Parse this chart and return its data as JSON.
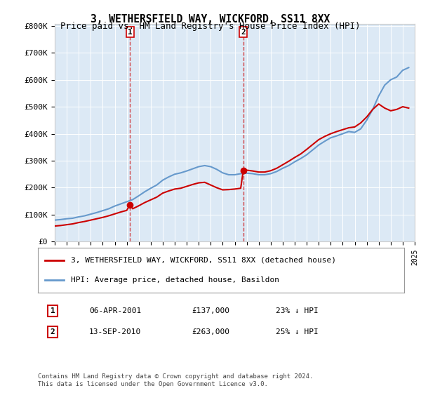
{
  "title": "3, WETHERSFIELD WAY, WICKFORD, SS11 8XX",
  "subtitle": "Price paid vs. HM Land Registry's House Price Index (HPI)",
  "bg_color": "#dce9f5",
  "plot_bg": "#dce9f5",
  "red_line_color": "#cc0000",
  "blue_line_color": "#6699cc",
  "sale1_year": 2001.27,
  "sale1_price": 137000,
  "sale1_label": "1",
  "sale2_year": 2010.71,
  "sale2_price": 263000,
  "sale2_label": "2",
  "xmin": 1995,
  "xmax": 2025,
  "ymin": 0,
  "ymax": 800000,
  "yticks": [
    0,
    100000,
    200000,
    300000,
    400000,
    500000,
    600000,
    700000,
    800000
  ],
  "xticks": [
    1995,
    1996,
    1997,
    1998,
    1999,
    2000,
    2001,
    2002,
    2003,
    2004,
    2005,
    2006,
    2007,
    2008,
    2009,
    2010,
    2011,
    2012,
    2013,
    2014,
    2015,
    2016,
    2017,
    2018,
    2019,
    2020,
    2021,
    2022,
    2023,
    2024,
    2025
  ],
  "legend_red_label": "3, WETHERSFIELD WAY, WICKFORD, SS11 8XX (detached house)",
  "legend_blue_label": "HPI: Average price, detached house, Basildon",
  "annotation1": [
    "1",
    "06-APR-2001",
    "£137,000",
    "23% ↓ HPI"
  ],
  "annotation2": [
    "2",
    "13-SEP-2010",
    "£263,000",
    "25% ↓ HPI"
  ],
  "footer": "Contains HM Land Registry data © Crown copyright and database right 2024.\nThis data is licensed under the Open Government Licence v3.0.",
  "hpi_years": [
    1995,
    1995.5,
    1996,
    1996.5,
    1997,
    1997.5,
    1998,
    1998.5,
    1999,
    1999.5,
    2000,
    2000.5,
    2001,
    2001.5,
    2002,
    2002.5,
    2003,
    2003.5,
    2004,
    2004.5,
    2005,
    2005.5,
    2006,
    2006.5,
    2007,
    2007.5,
    2008,
    2008.5,
    2009,
    2009.5,
    2010,
    2010.5,
    2011,
    2011.5,
    2012,
    2012.5,
    2013,
    2013.5,
    2014,
    2014.5,
    2015,
    2015.5,
    2016,
    2016.5,
    2017,
    2017.5,
    2018,
    2018.5,
    2019,
    2019.5,
    2020,
    2020.5,
    2021,
    2021.5,
    2022,
    2022.5,
    2023,
    2023.5,
    2024,
    2024.5
  ],
  "hpi_values": [
    80000,
    82000,
    85000,
    87000,
    92000,
    96000,
    102000,
    108000,
    115000,
    122000,
    132000,
    140000,
    148000,
    156000,
    170000,
    185000,
    198000,
    210000,
    228000,
    240000,
    250000,
    255000,
    262000,
    270000,
    278000,
    282000,
    278000,
    268000,
    255000,
    248000,
    248000,
    252000,
    254000,
    252000,
    248000,
    248000,
    252000,
    260000,
    272000,
    282000,
    296000,
    308000,
    322000,
    340000,
    358000,
    372000,
    385000,
    392000,
    400000,
    408000,
    405000,
    418000,
    450000,
    490000,
    540000,
    580000,
    600000,
    610000,
    635000,
    645000
  ],
  "red_years": [
    1995,
    1995.5,
    1996,
    1996.5,
    1997,
    1997.5,
    1998,
    1998.5,
    1999,
    1999.5,
    2000,
    2000.5,
    2001,
    2001.27,
    2001.5,
    2002,
    2002.5,
    2003,
    2003.5,
    2004,
    2004.5,
    2005,
    2005.5,
    2006,
    2006.5,
    2007,
    2007.5,
    2008,
    2008.5,
    2009,
    2009.5,
    2010,
    2010.5,
    2010.71,
    2011,
    2011.5,
    2012,
    2012.5,
    2013,
    2013.5,
    2014,
    2014.5,
    2015,
    2015.5,
    2016,
    2016.5,
    2017,
    2017.5,
    2018,
    2018.5,
    2019,
    2019.5,
    2020,
    2020.5,
    2021,
    2021.5,
    2022,
    2022.5,
    2023,
    2023.5,
    2024,
    2024.5
  ],
  "red_values": [
    58000,
    60000,
    63000,
    66000,
    71000,
    75000,
    80000,
    85000,
    90000,
    96000,
    103000,
    110000,
    116000,
    137000,
    122000,
    133000,
    145000,
    155000,
    165000,
    180000,
    188000,
    195000,
    198000,
    205000,
    212000,
    218000,
    220000,
    210000,
    200000,
    192000,
    193000,
    195000,
    198000,
    263000,
    265000,
    262000,
    258000,
    258000,
    263000,
    272000,
    285000,
    298000,
    312000,
    325000,
    342000,
    360000,
    378000,
    390000,
    400000,
    408000,
    415000,
    422000,
    425000,
    440000,
    462000,
    490000,
    510000,
    495000,
    485000,
    490000,
    500000,
    495000
  ]
}
